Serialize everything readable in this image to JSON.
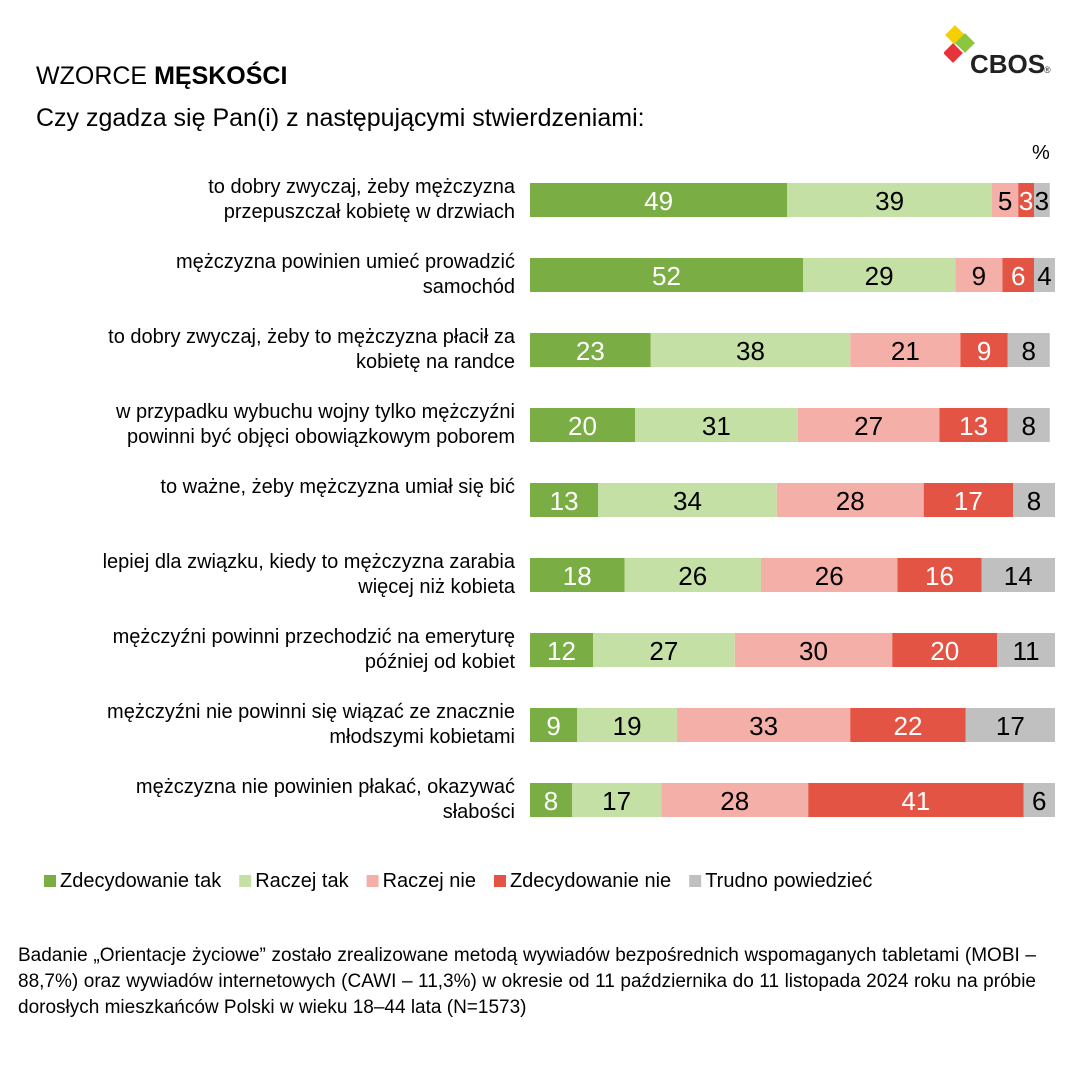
{
  "chart_data": {
    "type": "stacked-bar-horizontal",
    "logo": "CBOS",
    "logo_mark": "®",
    "title_parts": [
      "WZORCE",
      "MĘSKOŚCI"
    ],
    "subtitle": "Czy zgadza się Pan(i) z następującymi stwierdzeniami:",
    "unit": "%",
    "categories": [
      "to dobry zwyczaj, żeby mężczyzna\nprzepuszczał kobietę w drzwiach",
      "mężczyzna powinien umieć prowadzić\nsamochód",
      "to dobry zwyczaj, żeby to mężczyzna płacił za\nkobietę na randce",
      "w przypadku wybuchu wojny tylko mężczyźni\npowinni być objęci obowiązkowym poborem",
      "to ważne, żeby mężczyzna umiał się bić",
      "lepiej dla związku, kiedy to mężczyzna zarabia\nwięcej niż kobieta",
      "mężczyźni powinni przechodzić na emeryturę\npóźniej od kobiet",
      "mężczyźni nie powinni się wiązać ze znacznie\nmłodszymi kobietami",
      "mężczyzna nie powinien płakać, okazywać\nsłabości"
    ],
    "series": [
      {
        "name": "Zdecydowanie tak",
        "color": "#7aad43",
        "label_color": "#ffffff",
        "values": [
          49,
          52,
          23,
          20,
          13,
          18,
          12,
          9,
          8
        ]
      },
      {
        "name": "Raczej tak",
        "color": "#c5e0a5",
        "label_color": "#000000",
        "values": [
          39,
          29,
          38,
          31,
          34,
          26,
          27,
          19,
          17
        ]
      },
      {
        "name": "Raczej nie",
        "color": "#f4b0a8",
        "label_color": "#000000",
        "values": [
          5,
          9,
          21,
          27,
          28,
          26,
          30,
          33,
          28
        ]
      },
      {
        "name": "Zdecydowanie nie",
        "color": "#e45444",
        "label_color": "#ffffff",
        "values": [
          3,
          6,
          9,
          13,
          17,
          16,
          20,
          22,
          41
        ]
      },
      {
        "name": "Trudno powiedzieć",
        "color": "#c0c0c0",
        "label_color": "#000000",
        "values": [
          3,
          4,
          8,
          8,
          8,
          14,
          11,
          17,
          6
        ]
      }
    ],
    "xlim": [
      0,
      100
    ],
    "footnote": "Badanie „Orientacje życiowe” zostało zrealizowane metodą wywiadów bezpośrednich wspomaganych tabletami (MOBI – 88,7%) oraz wywiadów internetowych (CAWI – 11,3%) w okresie od 11 października do 11 listopada 2024 roku na próbie dorosłych mieszkańców Polski w wieku 18–44 lata (N=1573)"
  }
}
